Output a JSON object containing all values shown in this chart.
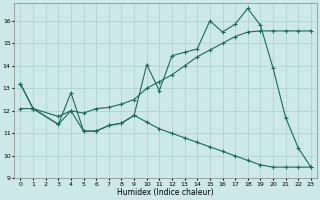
{
  "xlabel": "Humidex (Indice chaleur)",
  "xlim": [
    -0.5,
    23.5
  ],
  "ylim": [
    9,
    16.8
  ],
  "yticks": [
    9,
    10,
    11,
    12,
    13,
    14,
    15,
    16
  ],
  "xticks": [
    0,
    1,
    2,
    3,
    4,
    5,
    6,
    7,
    8,
    9,
    10,
    11,
    12,
    13,
    14,
    15,
    16,
    17,
    18,
    19,
    20,
    21,
    22,
    23
  ],
  "bg_color": "#cce8e8",
  "line_color": "#1a6b5a",
  "grid_color": "#aacfcf",
  "line1_x": [
    0,
    1,
    3,
    4,
    5,
    6,
    7,
    8,
    9,
    10,
    11,
    12,
    13,
    14,
    15,
    16,
    17,
    18,
    19,
    20,
    21,
    22,
    23
  ],
  "line1_y": [
    13.2,
    12.1,
    11.4,
    12.8,
    11.1,
    11.1,
    11.35,
    11.45,
    11.8,
    14.05,
    12.9,
    14.45,
    14.6,
    14.75,
    16.0,
    15.5,
    15.85,
    16.55,
    15.8,
    13.9,
    11.7,
    10.35,
    9.5
  ],
  "line2_x": [
    0,
    1,
    3,
    4,
    5,
    6,
    7,
    8,
    9,
    10,
    11,
    12,
    13,
    14,
    15,
    16,
    17,
    18,
    19,
    20,
    21,
    22,
    23
  ],
  "line2_y": [
    12.1,
    12.1,
    11.75,
    12.0,
    11.9,
    12.1,
    12.15,
    12.3,
    12.5,
    13.0,
    13.3,
    13.6,
    14.0,
    14.4,
    14.7,
    15.0,
    15.3,
    15.5,
    15.55,
    15.55,
    15.55,
    15.55,
    15.55
  ],
  "line3_x": [
    0,
    1,
    3,
    4,
    5,
    6,
    7,
    8,
    9,
    10,
    11,
    12,
    13,
    14,
    15,
    16,
    17,
    18,
    19,
    20,
    21,
    22,
    23
  ],
  "line3_y": [
    13.2,
    12.1,
    11.4,
    12.0,
    11.1,
    11.1,
    11.35,
    11.45,
    11.8,
    11.5,
    11.2,
    11.0,
    10.8,
    10.6,
    10.4,
    10.2,
    10.0,
    9.8,
    9.6,
    9.5,
    9.5,
    9.5,
    9.5
  ]
}
